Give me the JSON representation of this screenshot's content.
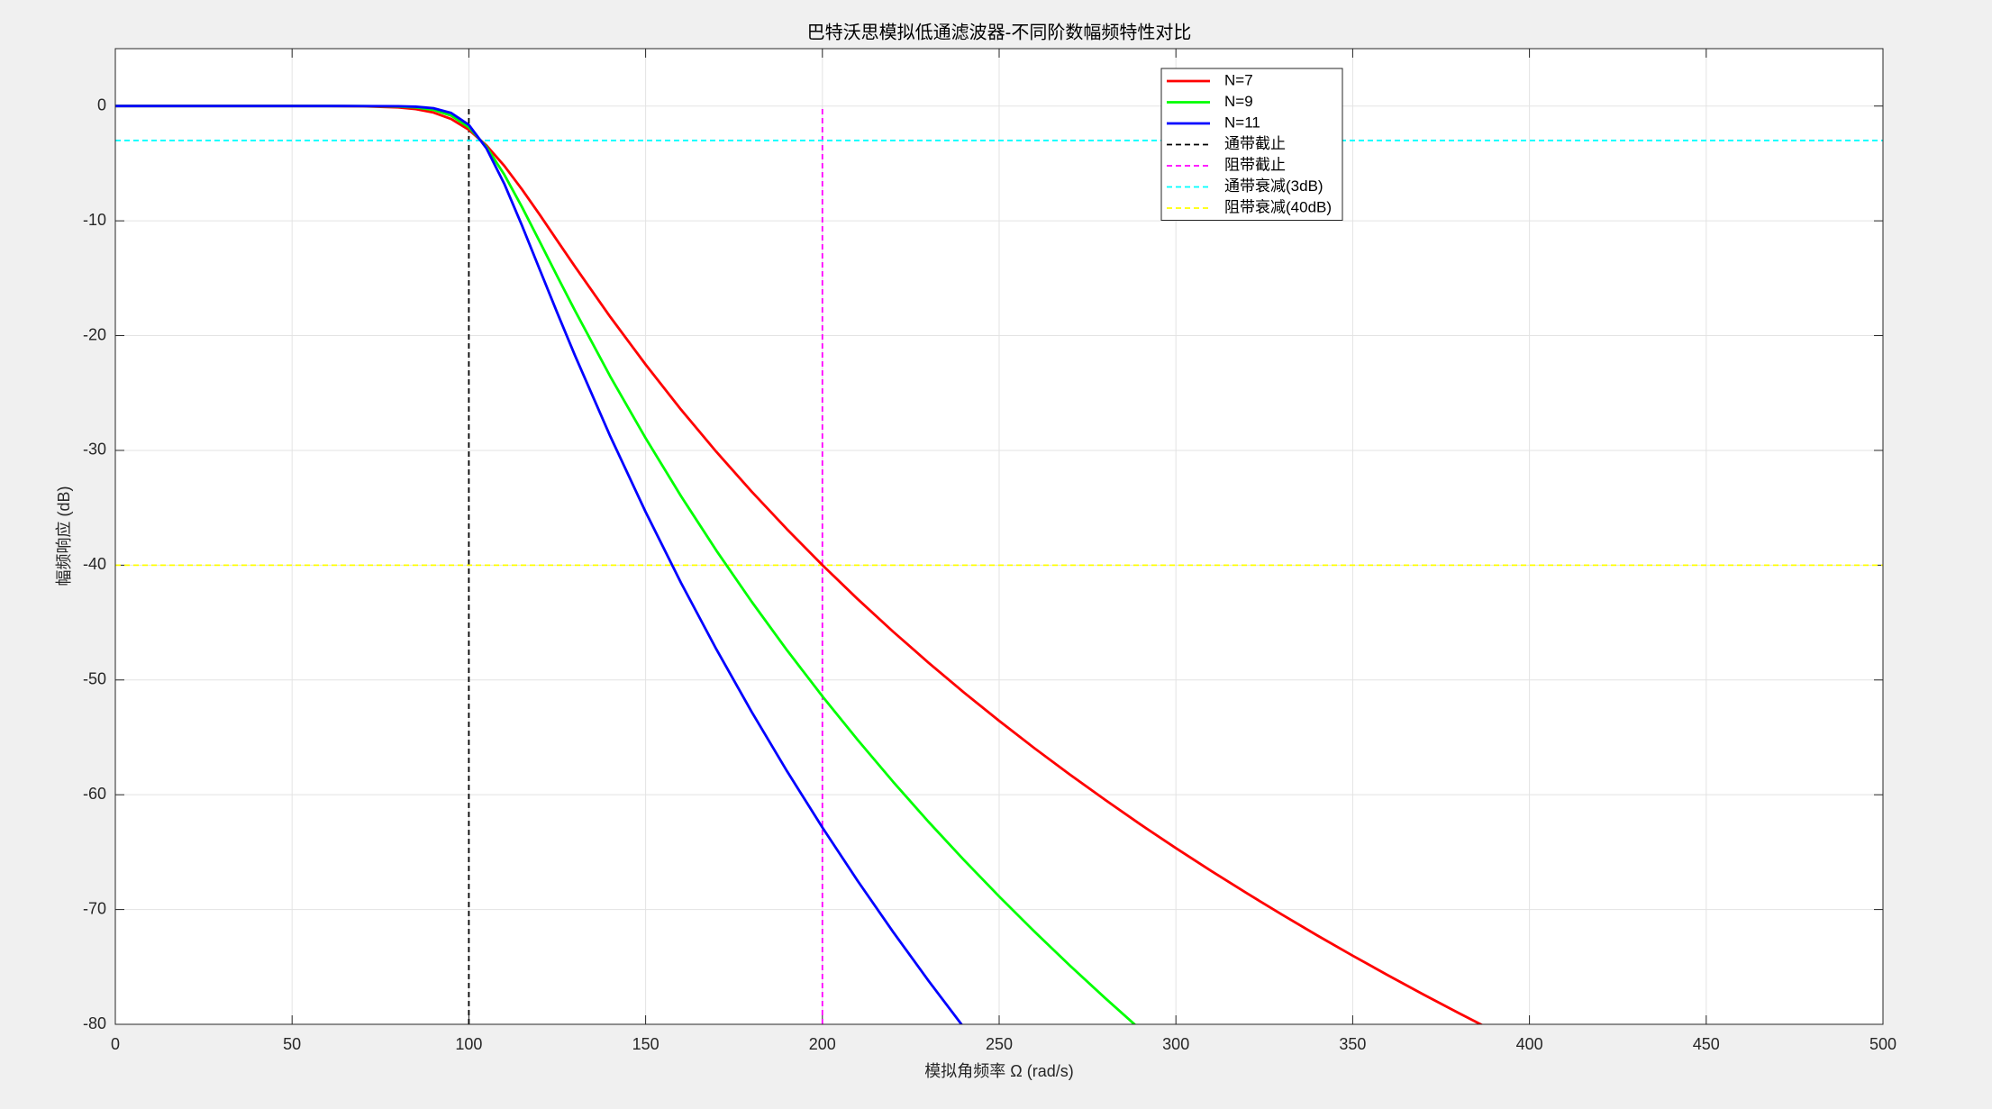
{
  "chart_data": {
    "type": "line",
    "title": "巴特沃思模拟低通滤波器-不同阶数幅频特性对比",
    "x_label": "模拟角频率 Ω (rad/s)",
    "y_label": "幅频响应 (dB)",
    "x": [
      0,
      10,
      20,
      30,
      40,
      50,
      60,
      70,
      80,
      85,
      90,
      95,
      100,
      105,
      110,
      115,
      120,
      125,
      130,
      140,
      150,
      160,
      170,
      180,
      190,
      200,
      210,
      220,
      230,
      240,
      250,
      260,
      270,
      280,
      290,
      300,
      310,
      320,
      330,
      340,
      350,
      360,
      370,
      380,
      390
    ],
    "series": [
      {
        "name": "N=7",
        "color": "#ff0000",
        "values": [
          0,
          0,
          0,
          0,
          0,
          0,
          -0.002,
          -0.018,
          -0.115,
          -0.264,
          -0.567,
          -1.13,
          -2.07,
          -3.44,
          -5.2,
          -7.25,
          -9.45,
          -11.72,
          -13.98,
          -18.37,
          -22.52,
          -26.44,
          -30.12,
          -33.59,
          -36.87,
          -39.99,
          -42.96,
          -45.79,
          -48.49,
          -51.08,
          -53.56,
          -55.95,
          -58.24,
          -60.45,
          -62.59,
          -64.65,
          -66.64,
          -68.57,
          -70.44,
          -72.26,
          -74.02,
          -75.73,
          -77.4,
          -79.02,
          -80.6
        ]
      },
      {
        "name": "N=9",
        "color": "#00ff00",
        "values": [
          0,
          0,
          0,
          0,
          0,
          0,
          0,
          -0.004,
          -0.041,
          -0.122,
          -0.332,
          -0.83,
          -1.85,
          -3.57,
          -5.96,
          -8.78,
          -11.79,
          -14.83,
          -17.81,
          -23.56,
          -28.93,
          -33.98,
          -38.72,
          -43.18,
          -47.41,
          -51.42,
          -55.23,
          -58.87,
          -62.35,
          -65.67,
          -68.86,
          -71.93,
          -74.88,
          -77.72,
          -80.47,
          null,
          null,
          null,
          null,
          null,
          null,
          null,
          null,
          null,
          null
        ]
      },
      {
        "name": "N=11",
        "color": "#0000ff",
        "values": [
          0,
          0,
          0,
          0,
          0,
          0,
          0,
          -0.001,
          -0.015,
          -0.056,
          -0.193,
          -0.6,
          -1.64,
          -3.7,
          -6.76,
          -10.39,
          -14.21,
          -18.01,
          -21.72,
          -28.77,
          -35.36,
          -41.53,
          -47.32,
          -52.78,
          -57.95,
          -62.85,
          -67.51,
          -71.95,
          -76.2,
          -80.27,
          null,
          null,
          null,
          null,
          null,
          null,
          null,
          null,
          null,
          null,
          null,
          null,
          null,
          null,
          null
        ]
      }
    ],
    "reference_lines": [
      {
        "name": "通带截止",
        "color": "#000000",
        "orientation": "vertical",
        "value": 100,
        "extent": [
          -80,
          0
        ]
      },
      {
        "name": "阻带截止",
        "color": "#ff00ff",
        "orientation": "vertical",
        "value": 200,
        "extent": [
          -80,
          0
        ]
      },
      {
        "name": "通带衰减(3dB)",
        "color": "#00ffff",
        "orientation": "horizontal",
        "value": -3,
        "extent": [
          0,
          500
        ]
      },
      {
        "name": "阻带衰减(40dB)",
        "color": "#ffff00",
        "orientation": "horizontal",
        "value": -40,
        "extent": [
          0,
          500
        ]
      }
    ],
    "xlim": [
      0,
      500
    ],
    "xticks": [
      0,
      50,
      100,
      150,
      200,
      250,
      300,
      350,
      400,
      450,
      500
    ],
    "ylim": [
      -80,
      5
    ],
    "yticks": [
      -80,
      -70,
      -60,
      -50,
      -40,
      -30,
      -20,
      -10,
      0
    ],
    "grid": true,
    "legend": "top-right"
  }
}
